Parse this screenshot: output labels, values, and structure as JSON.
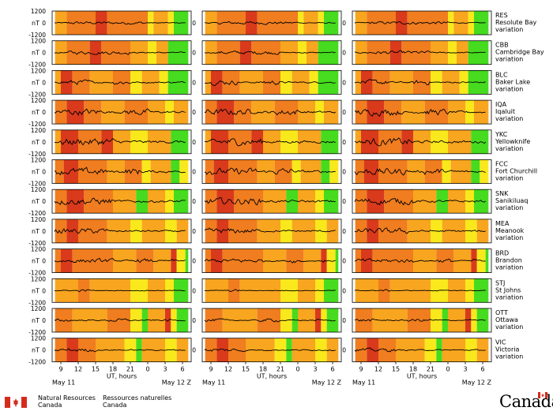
{
  "chart_data": {
    "type": "line",
    "title": "",
    "colors": {
      "red": "#d93a1c",
      "orange_dark": "#f07d1f",
      "orange": "#f8a51f",
      "yellow": "#f9e81c",
      "green": "#46db1f",
      "trace": "#000000"
    },
    "panel_ylabel": "nT",
    "y_ticks": [
      "1200",
      "0",
      "-1200"
    ],
    "ylim": [
      -1200,
      1200
    ],
    "x_ticks": [
      "9",
      "12",
      "15",
      "18",
      "21",
      "0",
      "3",
      "6"
    ],
    "x_hours": [
      9,
      12,
      15,
      18,
      21,
      24,
      27,
      30
    ],
    "xlim_hours": [
      7.5,
      31.5
    ],
    "xlabel": "UT, hours",
    "date_left": "May 11",
    "date_right": "May 12",
    "date_right_suffix": "Z",
    "columns": [
      "period-1",
      "period-2",
      "period-3"
    ],
    "stations": [
      {
        "code": "RES",
        "name": "Resolute Bay",
        "suffix": "variation",
        "amp": 220,
        "bands": [
          [
            "orange",
            8,
            10
          ],
          [
            "orange_dark",
            10,
            15
          ],
          [
            "red",
            15,
            17
          ],
          [
            "orange_dark",
            17,
            24
          ],
          [
            "yellow",
            24,
            25
          ],
          [
            "orange",
            25,
            27.5
          ],
          [
            "yellow",
            27.5,
            28.5
          ],
          [
            "green",
            28.5,
            31
          ]
        ]
      },
      {
        "code": "CBB",
        "name": "Cambridge Bay",
        "suffix": "variation",
        "amp": 260,
        "bands": [
          [
            "orange",
            8,
            10
          ],
          [
            "orange_dark",
            10,
            14
          ],
          [
            "red",
            14,
            16
          ],
          [
            "orange_dark",
            16,
            21
          ],
          [
            "orange",
            21,
            24
          ],
          [
            "yellow",
            24,
            25.5
          ],
          [
            "orange",
            25.5,
            27.5
          ],
          [
            "green",
            27.5,
            31
          ]
        ]
      },
      {
        "code": "BLC",
        "name": "Baker Lake",
        "suffix": "variation",
        "amp": 360,
        "bands": [
          [
            "orange",
            8,
            9
          ],
          [
            "red",
            9,
            11
          ],
          [
            "orange_dark",
            11,
            14
          ],
          [
            "orange",
            14,
            18
          ],
          [
            "orange_dark",
            18,
            21
          ],
          [
            "yellow",
            21,
            23
          ],
          [
            "orange",
            23,
            26
          ],
          [
            "yellow",
            26,
            27.5
          ],
          [
            "green",
            27.5,
            31
          ]
        ]
      },
      {
        "code": "IQA",
        "name": "Iqaluit",
        "suffix": "variation",
        "amp": 480,
        "bands": [
          [
            "orange_dark",
            8,
            10
          ],
          [
            "red",
            10,
            13
          ],
          [
            "orange_dark",
            13,
            16
          ],
          [
            "orange",
            16,
            20
          ],
          [
            "orange_dark",
            20,
            24
          ],
          [
            "orange",
            24,
            27
          ],
          [
            "yellow",
            27,
            28.5
          ],
          [
            "orange",
            28.5,
            31
          ]
        ]
      },
      {
        "code": "YKC",
        "name": "Yellowknife",
        "suffix": "variation",
        "amp": 560,
        "bands": [
          [
            "orange",
            8,
            9
          ],
          [
            "red",
            9,
            12
          ],
          [
            "orange_dark",
            12,
            16
          ],
          [
            "red",
            16,
            18
          ],
          [
            "orange",
            18,
            21
          ],
          [
            "yellow",
            21,
            24
          ],
          [
            "orange",
            24,
            28
          ],
          [
            "green",
            28,
            31
          ]
        ]
      },
      {
        "code": "FCC",
        "name": "Fort Churchill",
        "suffix": "variation",
        "amp": 520,
        "bands": [
          [
            "orange_dark",
            8,
            9.5
          ],
          [
            "red",
            9.5,
            12
          ],
          [
            "orange_dark",
            12,
            17
          ],
          [
            "orange",
            17,
            20
          ],
          [
            "orange_dark",
            20,
            23
          ],
          [
            "yellow",
            23,
            24.5
          ],
          [
            "orange",
            24.5,
            28
          ],
          [
            "green",
            28,
            29.5
          ],
          [
            "yellow",
            29.5,
            31
          ]
        ]
      },
      {
        "code": "SNK",
        "name": "Sanikiluaq",
        "suffix": "variation",
        "amp": 500,
        "bands": [
          [
            "orange_dark",
            8,
            10
          ],
          [
            "red",
            10,
            13
          ],
          [
            "orange_dark",
            13,
            18
          ],
          [
            "orange",
            18,
            22
          ],
          [
            "green",
            22,
            24
          ],
          [
            "orange",
            24,
            27
          ],
          [
            "yellow",
            27,
            28.5
          ],
          [
            "green",
            28.5,
            31
          ]
        ]
      },
      {
        "code": "MEA",
        "name": "Meanook",
        "suffix": "variation",
        "amp": 400,
        "bands": [
          [
            "orange_dark",
            8,
            10
          ],
          [
            "red",
            10,
            12
          ],
          [
            "orange_dark",
            12,
            17
          ],
          [
            "orange",
            17,
            21
          ],
          [
            "yellow",
            21,
            23
          ],
          [
            "orange",
            23,
            27
          ],
          [
            "yellow",
            27,
            29
          ],
          [
            "orange",
            29,
            31
          ]
        ]
      },
      {
        "code": "BRD",
        "name": "Brandon",
        "suffix": "variation",
        "amp": 300,
        "bands": [
          [
            "orange_dark",
            8,
            9
          ],
          [
            "red",
            9,
            11
          ],
          [
            "orange_dark",
            11,
            18
          ],
          [
            "orange",
            18,
            22
          ],
          [
            "orange_dark",
            22,
            25
          ],
          [
            "orange",
            25,
            28
          ],
          [
            "red",
            28,
            29
          ],
          [
            "yellow",
            29,
            30.5
          ],
          [
            "green",
            30.5,
            31
          ]
        ]
      },
      {
        "code": "STJ",
        "name": "St Johns",
        "suffix": "variation",
        "amp": 180,
        "bands": [
          [
            "orange",
            8,
            12
          ],
          [
            "orange_dark",
            12,
            14
          ],
          [
            "orange",
            14,
            21
          ],
          [
            "yellow",
            21,
            24
          ],
          [
            "orange",
            24,
            27
          ],
          [
            "yellow",
            27,
            28.5
          ],
          [
            "green",
            28.5,
            31
          ]
        ]
      },
      {
        "code": "OTT",
        "name": "Ottawa",
        "suffix": "variation",
        "amp": 240,
        "bands": [
          [
            "orange_dark",
            8,
            11
          ],
          [
            "orange",
            11,
            17
          ],
          [
            "orange_dark",
            17,
            21
          ],
          [
            "yellow",
            21,
            23
          ],
          [
            "green",
            23,
            24
          ],
          [
            "orange",
            24,
            27
          ],
          [
            "red",
            27,
            28
          ],
          [
            "yellow",
            28,
            29
          ],
          [
            "green",
            29,
            31
          ]
        ]
      },
      {
        "code": "VIC",
        "name": "Victoria",
        "suffix": "variation",
        "amp": 260,
        "bands": [
          [
            "orange_dark",
            8,
            10
          ],
          [
            "red",
            10,
            12
          ],
          [
            "orange_dark",
            12,
            15
          ],
          [
            "orange",
            15,
            20
          ],
          [
            "yellow",
            20,
            22
          ],
          [
            "green",
            22,
            23
          ],
          [
            "orange",
            23,
            27
          ],
          [
            "yellow",
            27,
            29
          ],
          [
            "orange",
            29,
            31
          ]
        ]
      }
    ]
  },
  "footer": {
    "org_en_line1": "Natural Resources",
    "org_en_line2": "Canada",
    "org_fr_line1": "Ressources naturelles",
    "org_fr_line2": "Canada",
    "wordmark": "Canada"
  }
}
